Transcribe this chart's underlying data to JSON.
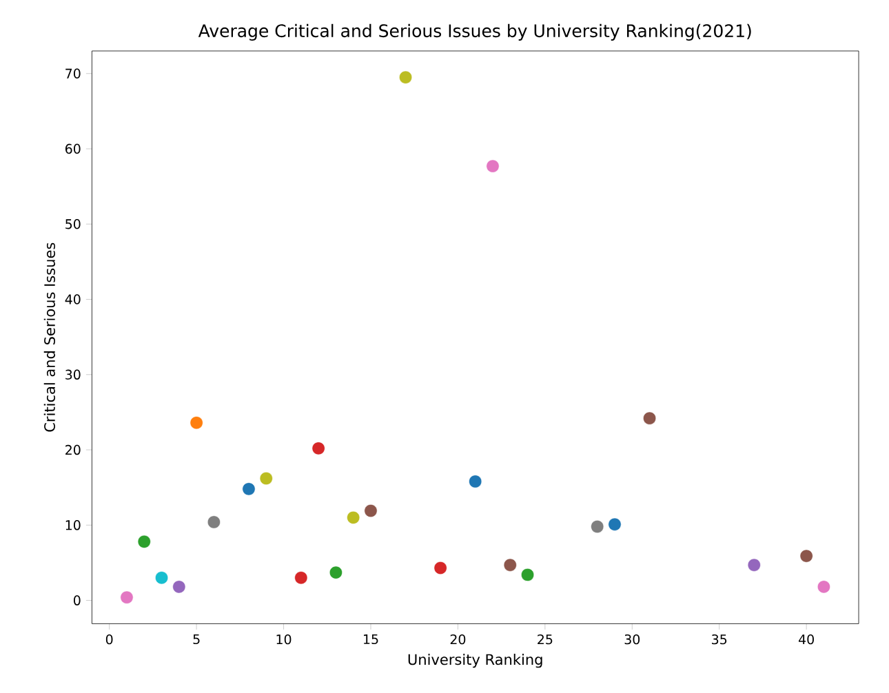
{
  "chart_data": {
    "type": "scatter",
    "title": "Average Critical and Serious Issues by University Ranking(2021)",
    "xlabel": "University Ranking",
    "ylabel": "Critical and Serious Issues",
    "x": [
      1,
      2,
      3,
      4,
      5,
      6,
      8,
      9,
      11,
      12,
      13,
      14,
      15,
      17,
      19,
      21,
      22,
      23,
      24,
      28,
      29,
      31,
      37,
      40,
      41
    ],
    "values": [
      0.4,
      7.8,
      3.0,
      1.8,
      23.6,
      10.4,
      14.8,
      16.2,
      3.0,
      20.2,
      3.7,
      11.0,
      11.9,
      69.5,
      4.3,
      15.8,
      57.7,
      4.7,
      3.4,
      9.8,
      10.1,
      24.2,
      4.7,
      5.9,
      1.8
    ],
    "colors": [
      "#e377c2",
      "#2ca02c",
      "#17becf",
      "#9467bd",
      "#ff7f0e",
      "#7f7f7f",
      "#1f77b4",
      "#bcbd22",
      "#d62728",
      "#d62728",
      "#2ca02c",
      "#bcbd22",
      "#8c564b",
      "#bcbd22",
      "#d62728",
      "#1f77b4",
      "#e377c2",
      "#8c564b",
      "#2ca02c",
      "#7f7f7f",
      "#1f77b4",
      "#8c564b",
      "#9467bd",
      "#8c564b",
      "#e377c2"
    ],
    "marker": "circle",
    "xlim": [
      -1,
      43
    ],
    "ylim": [
      -3.1,
      73
    ],
    "xticks": [
      0,
      5,
      10,
      15,
      20,
      25,
      30,
      35,
      40
    ],
    "yticks": [
      0,
      10,
      20,
      30,
      40,
      50,
      60,
      70
    ]
  }
}
